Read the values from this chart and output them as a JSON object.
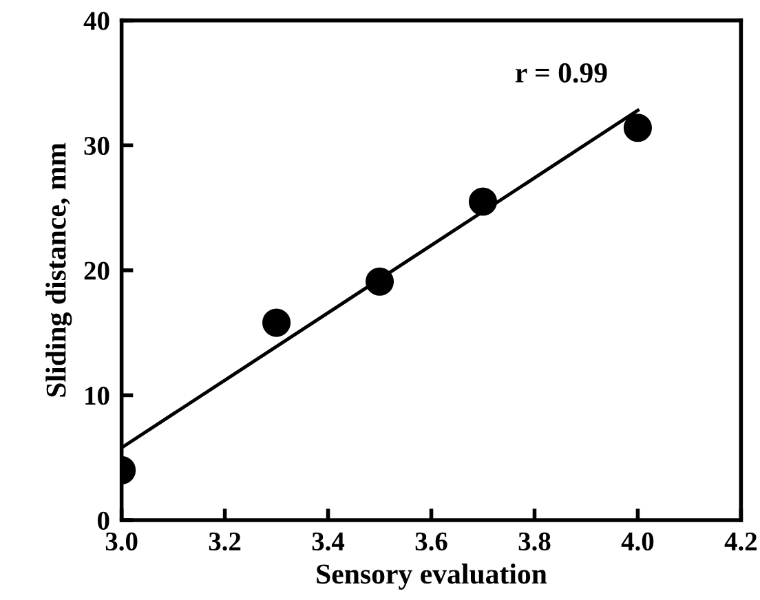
{
  "chart_data": {
    "type": "scatter",
    "xlabel": "Sensory evaluation",
    "ylabel": "Sliding distance, mm",
    "series": [
      {
        "color": "#000000",
        "x": [
          3.0,
          3.3,
          3.5,
          3.7,
          4.0
        ],
        "values": [
          4.0,
          15.8,
          19.1,
          25.5,
          31.4
        ],
        "marker": "circle"
      },
      {
        "type": "line",
        "color": "#000000",
        "x": [
          3.0,
          4.0
        ],
        "values": [
          5.8,
          32.8
        ],
        "line_style": "solid"
      }
    ],
    "annotations": [
      "r = 0.99"
    ],
    "xlim": [
      3.0,
      4.2
    ],
    "xticks": [
      {
        "value": 3.0,
        "label": "3.0"
      },
      3.2,
      3.4,
      3.6,
      3.8,
      {
        "value": 4.0,
        "label": "4.0"
      },
      4.2
    ],
    "ylim": [
      0,
      40
    ],
    "yticks": [
      0,
      10,
      20,
      30,
      40
    ],
    "grid": false,
    "legend": false
  }
}
